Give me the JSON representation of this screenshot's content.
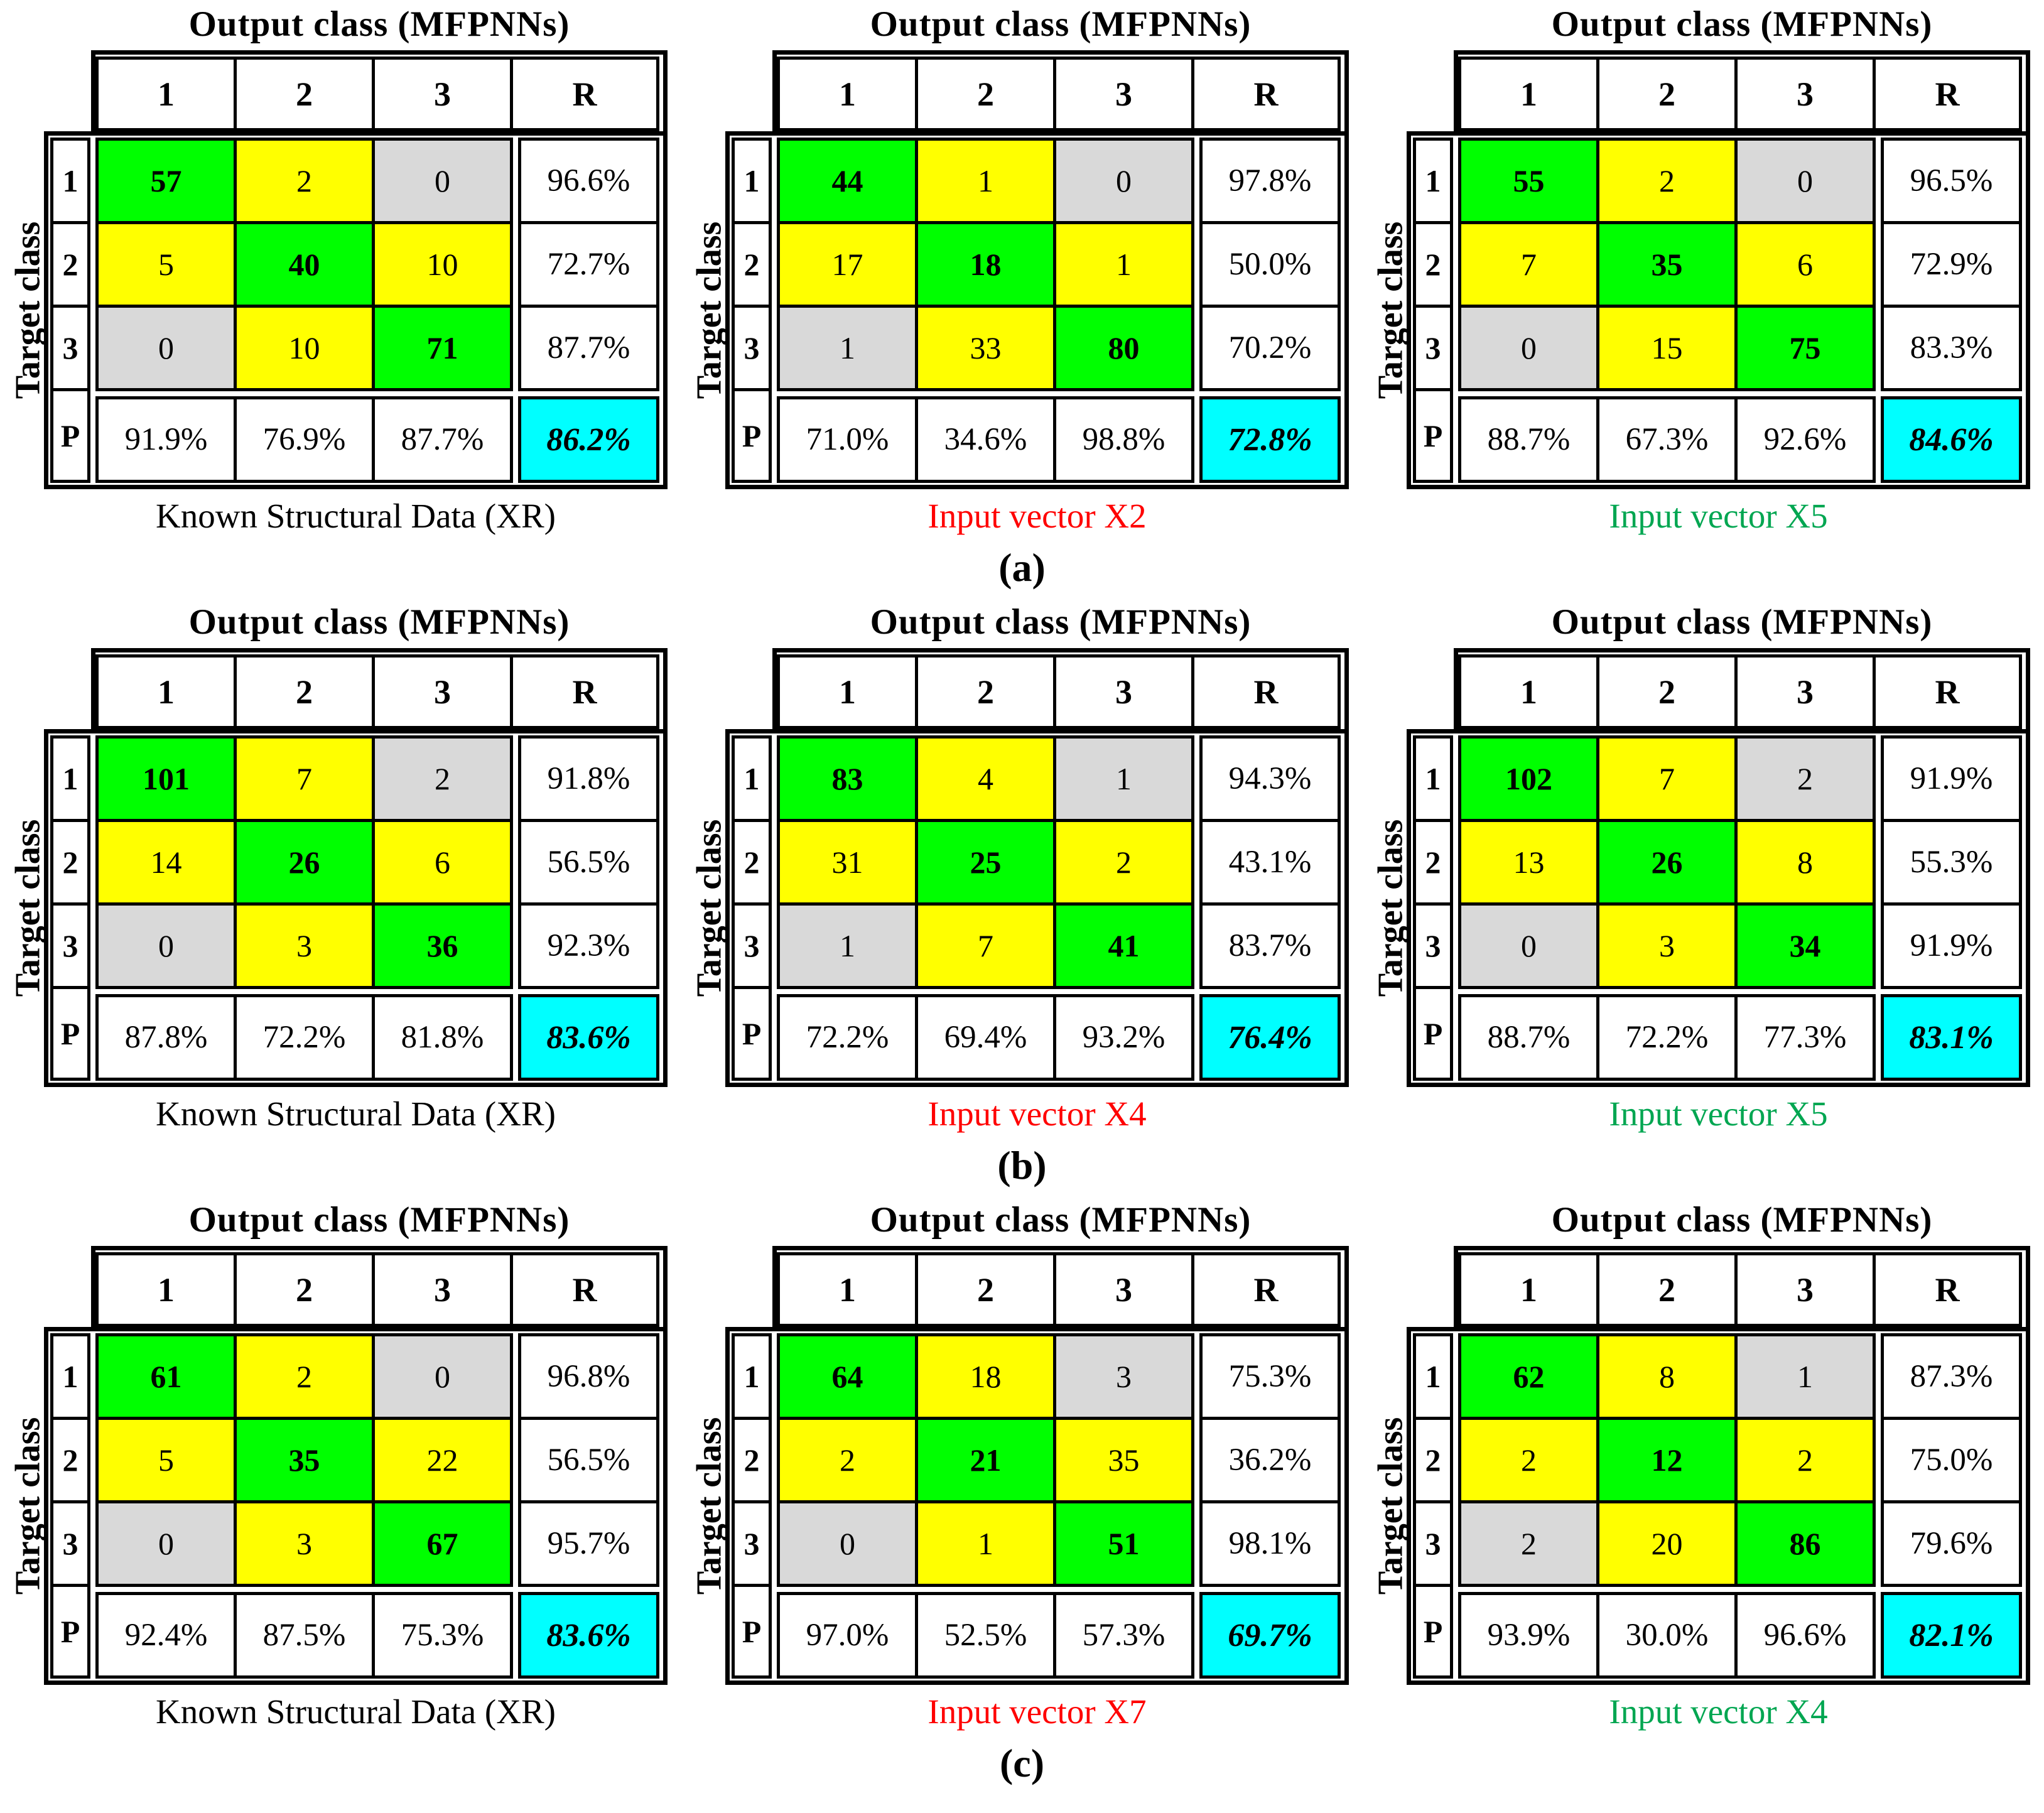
{
  "figure": {
    "y_axis_label": "Target class",
    "col_headers": [
      "1",
      "2",
      "3",
      "R"
    ],
    "row_headers": [
      "1",
      "2",
      "3",
      "P"
    ],
    "row_labels": [
      "(a)",
      "(b)",
      "(c)"
    ],
    "colors": {
      "diagonal_green": "#00FF00",
      "off_diagonal_yellow": "#FFFF00",
      "corner_gray": "#D9D9D9",
      "overall_cyan": "#00FFFF",
      "caption_black": "#000000",
      "caption_red": "#FF0000",
      "caption_green": "#00A651",
      "border_black": "#000000",
      "cell_white": "#FFFFFF"
    }
  },
  "chart_data": [
    {
      "type": "heatmap",
      "group": "(a)",
      "title": "Output class (MFPNNs)",
      "xlabel": "Output class (MFPNNs)",
      "ylabel": "Target class",
      "caption": "Known Structural Data (XR)",
      "caption_color": "#000000",
      "classes": [
        "1",
        "2",
        "3"
      ],
      "matrix": [
        [
          57,
          2,
          0
        ],
        [
          5,
          40,
          10
        ],
        [
          0,
          10,
          71
        ]
      ],
      "recall": [
        "96.6%",
        "72.7%",
        "87.7%"
      ],
      "precision": [
        "91.9%",
        "76.9%",
        "87.7%"
      ],
      "overall": "86.2%"
    },
    {
      "type": "heatmap",
      "group": "(a)",
      "title": "Output class (MFPNNs)",
      "xlabel": "Output class (MFPNNs)",
      "ylabel": "Target class",
      "caption": "Input vector X2",
      "caption_color": "#FF0000",
      "classes": [
        "1",
        "2",
        "3"
      ],
      "matrix": [
        [
          44,
          1,
          0
        ],
        [
          17,
          18,
          1
        ],
        [
          1,
          33,
          80
        ]
      ],
      "recall": [
        "97.8%",
        "50.0%",
        "70.2%"
      ],
      "precision": [
        "71.0%",
        "34.6%",
        "98.8%"
      ],
      "overall": "72.8%"
    },
    {
      "type": "heatmap",
      "group": "(a)",
      "title": "Output class (MFPNNs)",
      "xlabel": "Output class (MFPNNs)",
      "ylabel": "Target class",
      "caption": "Input vector X5",
      "caption_color": "#00A651",
      "classes": [
        "1",
        "2",
        "3"
      ],
      "matrix": [
        [
          55,
          2,
          0
        ],
        [
          7,
          35,
          6
        ],
        [
          0,
          15,
          75
        ]
      ],
      "recall": [
        "96.5%",
        "72.9%",
        "83.3%"
      ],
      "precision": [
        "88.7%",
        "67.3%",
        "92.6%"
      ],
      "overall": "84.6%"
    },
    {
      "type": "heatmap",
      "group": "(b)",
      "title": "Output class (MFPNNs)",
      "xlabel": "Output class (MFPNNs)",
      "ylabel": "Target class",
      "caption": "Known Structural Data (XR)",
      "caption_color": "#000000",
      "classes": [
        "1",
        "2",
        "3"
      ],
      "matrix": [
        [
          101,
          7,
          2
        ],
        [
          14,
          26,
          6
        ],
        [
          0,
          3,
          36
        ]
      ],
      "recall": [
        "91.8%",
        "56.5%",
        "92.3%"
      ],
      "precision": [
        "87.8%",
        "72.2%",
        "81.8%"
      ],
      "overall": "83.6%"
    },
    {
      "type": "heatmap",
      "group": "(b)",
      "title": "Output class (MFPNNs)",
      "xlabel": "Output class (MFPNNs)",
      "ylabel": "Target class",
      "caption": "Input vector X4",
      "caption_color": "#FF0000",
      "classes": [
        "1",
        "2",
        "3"
      ],
      "matrix": [
        [
          83,
          4,
          1
        ],
        [
          31,
          25,
          2
        ],
        [
          1,
          7,
          41
        ]
      ],
      "recall": [
        "94.3%",
        "43.1%",
        "83.7%"
      ],
      "precision": [
        "72.2%",
        "69.4%",
        "93.2%"
      ],
      "overall": "76.4%"
    },
    {
      "type": "heatmap",
      "group": "(b)",
      "title": "Output class (MFPNNs)",
      "xlabel": "Output class (MFPNNs)",
      "ylabel": "Target class",
      "caption": "Input vector X5",
      "caption_color": "#00A651",
      "classes": [
        "1",
        "2",
        "3"
      ],
      "matrix": [
        [
          102,
          7,
          2
        ],
        [
          13,
          26,
          8
        ],
        [
          0,
          3,
          34
        ]
      ],
      "recall": [
        "91.9%",
        "55.3%",
        "91.9%"
      ],
      "precision": [
        "88.7%",
        "72.2%",
        "77.3%"
      ],
      "overall": "83.1%"
    },
    {
      "type": "heatmap",
      "group": "(c)",
      "title": "Output class (MFPNNs)",
      "xlabel": "Output class (MFPNNs)",
      "ylabel": "Target class",
      "caption": "Known Structural Data (XR)",
      "caption_color": "#000000",
      "classes": [
        "1",
        "2",
        "3"
      ],
      "matrix": [
        [
          61,
          2,
          0
        ],
        [
          5,
          35,
          22
        ],
        [
          0,
          3,
          67
        ]
      ],
      "recall": [
        "96.8%",
        "56.5%",
        "95.7%"
      ],
      "precision": [
        "92.4%",
        "87.5%",
        "75.3%"
      ],
      "overall": "83.6%"
    },
    {
      "type": "heatmap",
      "group": "(c)",
      "title": "Output class (MFPNNs)",
      "xlabel": "Output class (MFPNNs)",
      "ylabel": "Target class",
      "caption": "Input vector X7",
      "caption_color": "#FF0000",
      "classes": [
        "1",
        "2",
        "3"
      ],
      "matrix": [
        [
          64,
          18,
          3
        ],
        [
          2,
          21,
          35
        ],
        [
          0,
          1,
          51
        ]
      ],
      "recall": [
        "75.3%",
        "36.2%",
        "98.1%"
      ],
      "precision": [
        "97.0%",
        "52.5%",
        "57.3%"
      ],
      "overall": "69.7%"
    },
    {
      "type": "heatmap",
      "group": "(c)",
      "title": "Output class (MFPNNs)",
      "xlabel": "Output class (MFPNNs)",
      "ylabel": "Target class",
      "caption": "Input vector X4",
      "caption_color": "#00A651",
      "classes": [
        "1",
        "2",
        "3"
      ],
      "matrix": [
        [
          62,
          8,
          1
        ],
        [
          2,
          12,
          2
        ],
        [
          2,
          20,
          86
        ]
      ],
      "recall": [
        "87.3%",
        "75.0%",
        "79.6%"
      ],
      "precision": [
        "93.9%",
        "30.0%",
        "96.6%"
      ],
      "overall": "82.1%"
    }
  ]
}
